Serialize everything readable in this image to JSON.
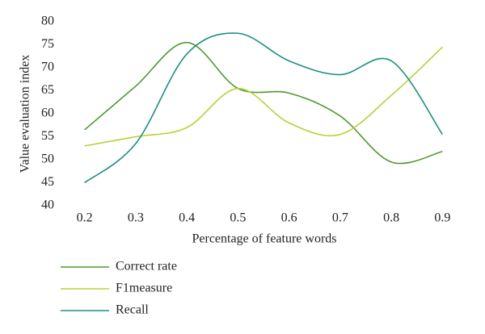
{
  "chart_data": {
    "type": "line",
    "x_label": "Percentage of feature words",
    "y_label": "Value evaluation index",
    "x": [
      0.2,
      0.3,
      0.4,
      0.5,
      0.6,
      0.7,
      0.8,
      0.9
    ],
    "xlim": [
      0.15,
      0.95
    ],
    "xticks": [
      0.2,
      0.3,
      0.4,
      0.5,
      0.6,
      0.7,
      0.8,
      0.9
    ],
    "ylim": [
      40,
      80
    ],
    "yticks": [
      40,
      45,
      50,
      55,
      60,
      65,
      70,
      75,
      80
    ],
    "smooth": true,
    "legend": "bottom-left",
    "series": [
      {
        "name": "Correct rate",
        "color": "#4e9a2e",
        "values": [
          56.5,
          66,
          75.5,
          65.5,
          64.5,
          59.5,
          49.5,
          51.8
        ]
      },
      {
        "name": "F1measure",
        "color": "#b5d334",
        "values": [
          53,
          55,
          57,
          65.5,
          58,
          55.5,
          64,
          74.5
        ]
      },
      {
        "name": "Recall",
        "color": "#1a9080",
        "values": [
          45,
          53.5,
          73,
          77.5,
          71.5,
          68.5,
          71.5,
          55.5
        ]
      }
    ]
  }
}
